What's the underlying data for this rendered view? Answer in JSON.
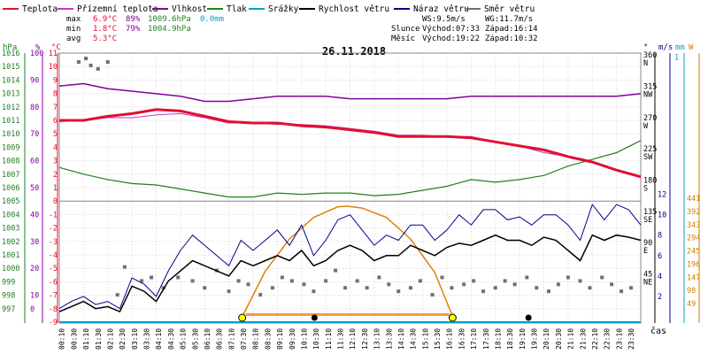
{
  "chart_data": {
    "type": "line",
    "title": "26.11.2018",
    "xlabel": "čas",
    "legend_placement": "top",
    "legend": [
      {
        "label": "Teplota",
        "color": "#e01030"
      },
      {
        "label": "Přízemní teplota",
        "color": "#cc33cc"
      },
      {
        "label": "Vlhkost",
        "color": "#8000a0"
      },
      {
        "label": "Tlak",
        "color": "#208020"
      },
      {
        "label": "Srážky",
        "color": "#00a0c8"
      },
      {
        "label": "Rychlost větru",
        "color": "#000000"
      },
      {
        "label": "Náraz větru",
        "color": "#00008b"
      },
      {
        "label": "Směr větru",
        "color": "#707070"
      }
    ],
    "stats": {
      "rows": [
        {
          "label": "max",
          "temp": "6.9°C",
          "hum": "89%",
          "press": "1009.6hPa",
          "rain": "0.0mm"
        },
        {
          "label": "min",
          "temp": "1.8°C",
          "hum": "79%",
          "press": "1004.9hPa"
        },
        {
          "label": "avg",
          "temp": "5.3°C"
        }
      ],
      "ws": "WS:9.5m/s",
      "wg": "WG:11.7m/s",
      "sun_label": "Slunce",
      "sunrise": "Východ:07:33",
      "sunset": "Západ:16:14",
      "moon_label": "Měsíc",
      "moonrise": "Východ:19:22",
      "moonset": "Západ:10:32"
    },
    "axes": {
      "hpa": {
        "label": "hPa",
        "ticks": [
          "1016",
          "1015",
          "1014",
          "1013",
          "1012",
          "1011",
          "1010",
          "1009",
          "1008",
          "1007",
          "1006",
          "1005",
          "1004",
          "1003",
          "1002",
          "1001",
          "1000",
          "999",
          "998",
          "997"
        ]
      },
      "pct": {
        "label": "%",
        "ticks": [
          "100",
          "",
          "90",
          "",
          "80",
          "",
          "70",
          "",
          "60",
          "",
          "50",
          "",
          "40",
          "",
          "30",
          "",
          "20",
          "",
          "10",
          "0"
        ]
      },
      "temp": {
        "label": "°C",
        "ticks": [
          "11",
          "10",
          "9",
          "8",
          "7",
          "6",
          "5",
          "4",
          "3",
          "2",
          "1",
          "0",
          "-1",
          "-2",
          "-3",
          "-4",
          "-5",
          "-6",
          "-7",
          "-8",
          "-9"
        ]
      },
      "dir": {
        "label": "°",
        "ticks": [
          {
            "v": 360,
            "t": "360",
            "c": "N"
          },
          {
            "v": 315,
            "t": "315",
            "c": "NW"
          },
          {
            "v": 270,
            "t": "270",
            "c": "W"
          },
          {
            "v": 225,
            "t": "225",
            "c": "SW"
          },
          {
            "v": 180,
            "t": "180",
            "c": "S"
          },
          {
            "v": 135,
            "t": "135",
            "c": "SE"
          },
          {
            "v": 90,
            "t": "90",
            "c": "E"
          },
          {
            "v": 45,
            "t": "45",
            "c": "NE"
          }
        ]
      },
      "ms": {
        "label": "m/s",
        "ticks": [
          "12",
          "10",
          "8",
          "6",
          "4",
          "2"
        ]
      },
      "mm": {
        "label": "mm",
        "top": "1"
      },
      "w": {
        "label": "W",
        "ticks": [
          "441",
          "392",
          "343",
          "294",
          "245",
          "196",
          "147",
          "98",
          "49"
        ]
      }
    },
    "x_ticks": [
      "00:10",
      "00:30",
      "01:10",
      "01:30",
      "02:10",
      "02:30",
      "03:10",
      "03:30",
      "04:10",
      "04:30",
      "05:10",
      "05:30",
      "06:10",
      "06:30",
      "07:10",
      "07:30",
      "08:10",
      "08:30",
      "09:10",
      "09:30",
      "10:10",
      "10:30",
      "11:10",
      "11:30",
      "12:10",
      "12:30",
      "13:10",
      "13:30",
      "14:10",
      "14:30",
      "15:10",
      "15:30",
      "16:10",
      "16:30",
      "17:10",
      "17:30",
      "18:10",
      "18:30",
      "19:10",
      "19:30",
      "20:10",
      "20:30",
      "21:10",
      "21:30",
      "22:10",
      "22:30",
      "23:10",
      "23:30"
    ],
    "series": [
      {
        "name": "Teplota",
        "unit": "°C",
        "hours": [
          0,
          1,
          2,
          3,
          4,
          5,
          6,
          7,
          8,
          9,
          10,
          11,
          12,
          13,
          14,
          15,
          16,
          17,
          18,
          19,
          20,
          21,
          22,
          23,
          24
        ],
        "values": [
          6.0,
          6.0,
          6.3,
          6.5,
          6.8,
          6.7,
          6.3,
          5.9,
          5.8,
          5.8,
          5.6,
          5.5,
          5.3,
          5.1,
          4.8,
          4.8,
          4.8,
          4.7,
          4.4,
          4.1,
          3.8,
          3.3,
          2.9,
          2.3,
          1.8
        ]
      },
      {
        "name": "Přízemní teplota",
        "unit": "°C",
        "hours": [
          0,
          1,
          2,
          3,
          4,
          5,
          6,
          7,
          8,
          9,
          10,
          11,
          12,
          13,
          14,
          15,
          16,
          17,
          18,
          19,
          20,
          21,
          22,
          23,
          24
        ],
        "values": [
          5.9,
          6.0,
          6.2,
          6.2,
          6.4,
          6.5,
          6.2,
          5.8,
          5.8,
          5.7,
          5.7,
          5.6,
          5.4,
          5.2,
          4.9,
          4.9,
          4.8,
          4.8,
          4.4,
          4.1,
          3.6,
          3.3,
          2.9,
          2.3,
          1.8
        ]
      },
      {
        "name": "Vlhkost",
        "unit": "%",
        "hours": [
          0,
          1,
          2,
          3,
          4,
          5,
          6,
          7,
          8,
          9,
          10,
          11,
          12,
          13,
          14,
          15,
          16,
          17,
          18,
          19,
          20,
          21,
          22,
          23,
          24
        ],
        "values": [
          88,
          89,
          87,
          86,
          85,
          84,
          82,
          82,
          83,
          84,
          84,
          84,
          83,
          83,
          83,
          83,
          83,
          84,
          84,
          84,
          84,
          84,
          84,
          84,
          85
        ]
      },
      {
        "name": "Tlak",
        "unit": "hPa",
        "hours": [
          0,
          1,
          2,
          3,
          4,
          5,
          6,
          7,
          8,
          9,
          10,
          11,
          12,
          13,
          14,
          15,
          16,
          17,
          18,
          19,
          20,
          21,
          22,
          23,
          24
        ],
        "values": [
          1007.5,
          1007.0,
          1006.6,
          1006.3,
          1006.2,
          1005.9,
          1005.6,
          1005.3,
          1005.3,
          1005.6,
          1005.5,
          1005.6,
          1005.6,
          1005.4,
          1005.5,
          1005.8,
          1006.1,
          1006.6,
          1006.4,
          1006.6,
          1006.9,
          1007.6,
          1008.1,
          1008.6,
          1009.5
        ]
      },
      {
        "name": "Srážky",
        "unit": "mm",
        "hours": [
          0,
          24
        ],
        "values": [
          0.0,
          0.0
        ]
      },
      {
        "name": "Rychlost větru",
        "unit": "m/s",
        "hours": [
          0,
          0.5,
          1,
          1.5,
          2,
          2.5,
          3,
          3.5,
          4,
          4.5,
          5,
          5.5,
          6,
          6.5,
          7,
          7.5,
          8,
          8.5,
          9,
          9.5,
          10,
          10.5,
          11,
          11.5,
          12,
          12.5,
          13,
          13.5,
          14,
          14.5,
          15,
          15.5,
          16,
          16.5,
          17,
          17.5,
          18,
          18.5,
          19,
          19.5,
          20,
          20.5,
          21,
          21.5,
          22,
          22.5,
          23,
          23.5,
          24
        ],
        "values": [
          0.5,
          1.0,
          1.5,
          0.8,
          1.0,
          0.5,
          3.0,
          2.5,
          1.5,
          3.5,
          4.5,
          5.5,
          5.0,
          4.5,
          4.0,
          5.5,
          5.0,
          5.5,
          6.0,
          5.5,
          6.5,
          5.0,
          5.5,
          6.5,
          7.0,
          6.5,
          5.5,
          6.0,
          6.0,
          7.0,
          6.5,
          6.0,
          6.8,
          7.2,
          7.0,
          7.5,
          8.0,
          7.5,
          7.5,
          7.0,
          7.8,
          7.5,
          6.5,
          5.5,
          8.0,
          7.5,
          8.0,
          7.8,
          7.5
        ]
      },
      {
        "name": "Náraz větru",
        "unit": "m/s",
        "hours": [
          0,
          0.5,
          1,
          1.5,
          2,
          2.5,
          3,
          3.5,
          4,
          4.5,
          5,
          5.5,
          6,
          6.5,
          7,
          7.5,
          8,
          8.5,
          9,
          9.5,
          10,
          10.5,
          11,
          11.5,
          12,
          12.5,
          13,
          13.5,
          14,
          14.5,
          15,
          15.5,
          16,
          16.5,
          17,
          17.5,
          18,
          18.5,
          19,
          19.5,
          20,
          20.5,
          21,
          21.5,
          22,
          22.5,
          23,
          23.5,
          24
        ],
        "values": [
          0.8,
          1.5,
          2.0,
          1.2,
          1.5,
          0.8,
          3.8,
          3.2,
          2.0,
          4.5,
          6.5,
          8.0,
          7.0,
          6.0,
          5.0,
          7.5,
          6.5,
          7.5,
          8.5,
          7.0,
          9.0,
          6.0,
          7.5,
          9.5,
          10.0,
          8.5,
          7.0,
          8.0,
          7.5,
          9.0,
          9.0,
          7.5,
          8.5,
          10.0,
          9.0,
          10.5,
          10.5,
          9.5,
          9.8,
          9.0,
          10.0,
          10.0,
          9.0,
          7.5,
          11.0,
          9.5,
          11.0,
          10.5,
          9.0
        ]
      },
      {
        "name": "Směr větru",
        "unit": "°",
        "hours": [
          0.8,
          1.1,
          1.3,
          1.6,
          2.0,
          2.4,
          2.7,
          3.4,
          3.8,
          4.3,
          4.9,
          5.5,
          6.0,
          6.5,
          7.0,
          7.4,
          7.8,
          8.3,
          8.8,
          9.2,
          9.6,
          10.1,
          10.5,
          11.0,
          11.4,
          11.8,
          12.3,
          12.7,
          13.2,
          13.6,
          14.0,
          14.5,
          14.9,
          15.4,
          15.8,
          16.2,
          16.7,
          17.1,
          17.5,
          18.0,
          18.4,
          18.8,
          19.3,
          19.7,
          20.2,
          20.6,
          21.0,
          21.5,
          21.9,
          22.4,
          22.8,
          23.2,
          23.6
        ],
        "values": [
          355,
          360,
          350,
          345,
          355,
          20,
          60,
          40,
          45,
          30,
          45,
          40,
          30,
          55,
          25,
          40,
          35,
          20,
          30,
          45,
          40,
          35,
          25,
          40,
          55,
          30,
          40,
          30,
          45,
          35,
          25,
          30,
          40,
          20,
          45,
          30,
          35,
          40,
          25,
          30,
          40,
          35,
          45,
          30,
          25,
          35,
          45,
          40,
          30,
          45,
          35,
          25,
          30
        ]
      },
      {
        "name": "Solar radiation",
        "unit": "W",
        "hours": [
          7.55,
          8.5,
          9.5,
          10.5,
          11.5,
          11.9,
          12.5,
          13.5,
          14.5,
          15.5,
          16.24
        ],
        "values": [
          0,
          170,
          290,
          370,
          410,
          412,
          405,
          370,
          290,
          165,
          0
        ]
      }
    ]
  }
}
